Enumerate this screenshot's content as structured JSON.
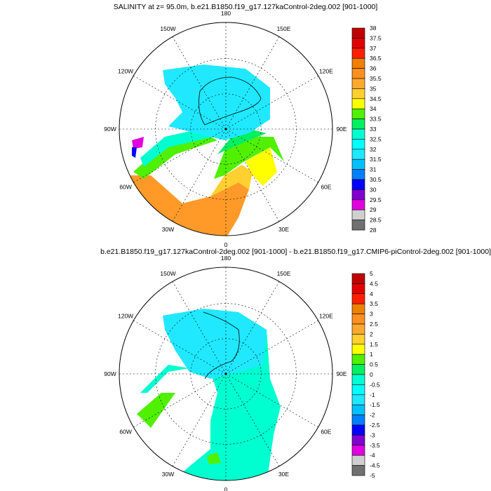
{
  "panels": [
    {
      "title": "SALINITY at z=  95.0m, b.e21.B1850.f19_g17.127kaControl-2deg.002 [901-1000]",
      "colorbar_labels": [
        "38",
        "37.5",
        "37",
        "36.5",
        "36",
        "35.5",
        "35",
        "34.5",
        "34",
        "33.5",
        "33",
        "32.5",
        "32",
        "31.5",
        "31",
        "30.5",
        "30",
        "29.5",
        "29",
        "28.5",
        "28"
      ]
    },
    {
      "title": "b.e21.B1850.f19_g17.127kaControl-2deg.002 [901-1000] - b.e21.B1850.f19_g17.CMIP6-piControl-2deg.002 [901-1000]",
      "colorbar_labels": [
        "5",
        "4.5",
        "4",
        "3.5",
        "3",
        "2.5",
        "2",
        "1.5",
        "1",
        "0.5",
        "0",
        "-0.5",
        "-1",
        "-1.5",
        "-2",
        "-2.5",
        "-3",
        "-3.5",
        "-4",
        "-4.5",
        "-5"
      ]
    }
  ],
  "lon_labels": [
    "180",
    "150E",
    "120E",
    "90E",
    "60E",
    "30E",
    "0",
    "30W",
    "60W",
    "90W",
    "120W",
    "150W"
  ],
  "colorbar_colors": [
    "#c00000",
    "#e00000",
    "#ff2000",
    "#f08000",
    "#ff9020",
    "#ffa830",
    "#ffd030",
    "#ffff00",
    "#50f000",
    "#00f060",
    "#00ffd0",
    "#00ffff",
    "#20e8ff",
    "#00c0ff",
    "#0080ff",
    "#0000ff",
    "#8000d0",
    "#e000e0",
    "#d0d0d0",
    "#707070"
  ]
}
